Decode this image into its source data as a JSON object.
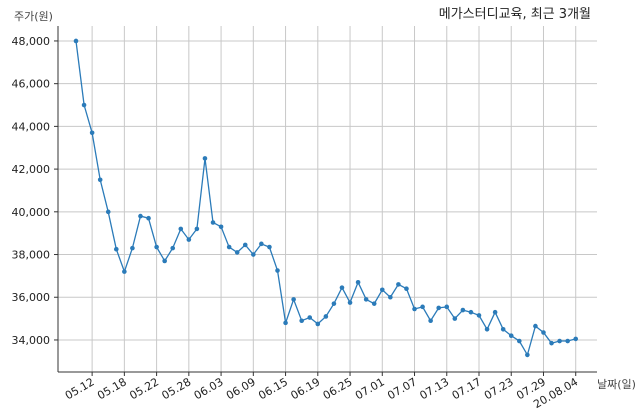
{
  "colors": {
    "line": "#2b7bb9",
    "grid": "#c8c8c8",
    "axis": "#333333"
  },
  "chart_data": {
    "type": "line",
    "title": "메가스터디교육, 최근 3개월",
    "ylabel": "주가(원)",
    "xlabel": "날짜(일)",
    "ylim": [
      32500,
      48700
    ],
    "yticks": [
      34000,
      36000,
      38000,
      40000,
      42000,
      44000,
      46000,
      48000
    ],
    "ytick_labels": [
      "34,000",
      "36,000",
      "38,000",
      "40,000",
      "42,000",
      "44,000",
      "46,000",
      "48,000"
    ],
    "xtick_labels": [
      "05.12",
      "05.18",
      "05.22",
      "05.28",
      "06.03",
      "06.09",
      "06.15",
      "06.19",
      "06.25",
      "07.01",
      "07.07",
      "07.13",
      "07.17",
      "07.23",
      "07.29",
      "20.08.04"
    ],
    "xtick_index": [
      2,
      6,
      10,
      14,
      18,
      22,
      26,
      30,
      34,
      38,
      42,
      46,
      50,
      54,
      58,
      62
    ],
    "grid": true,
    "series": [
      {
        "values": [
          48000,
          45000,
          43700,
          41500,
          40000,
          38250,
          37200,
          38300,
          39800,
          39700,
          38350,
          37700,
          38300,
          39200,
          38700,
          39200,
          42500,
          39500,
          39300,
          38350,
          38100,
          38450,
          38000,
          38500,
          38350,
          37250,
          34800,
          35900,
          34900,
          35050,
          34750,
          35100,
          35700,
          36450,
          35750,
          36700,
          35900,
          35700,
          36350,
          36000,
          36600,
          36400,
          35450,
          35550,
          34900,
          35500,
          35550,
          35000,
          35400,
          35300,
          35150,
          34500,
          35300,
          34500,
          34200,
          33950,
          33300,
          34650,
          34350,
          33850,
          33950,
          33950,
          34050
        ]
      }
    ]
  }
}
